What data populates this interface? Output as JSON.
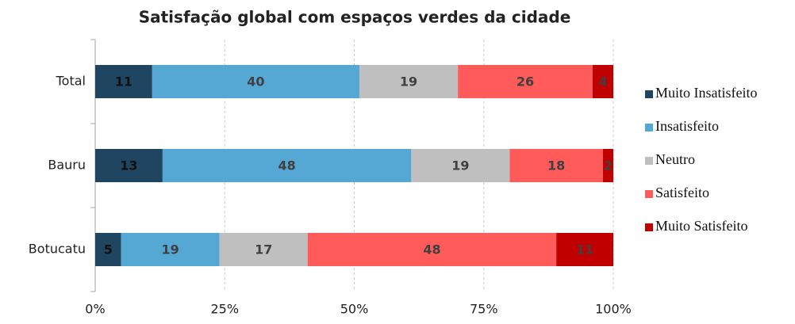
{
  "chart_data": {
    "type": "stacked_bar_horizontal",
    "title": "Satisfação global com espaços verdes da cidade",
    "categories": [
      "Total",
      "Bauru",
      "Botucatu"
    ],
    "series": [
      {
        "name": "Muito Insatisfeito",
        "color": "#1f4560",
        "values": [
          11,
          13,
          5
        ]
      },
      {
        "name": "Insatisfeito",
        "color": "#56a8d4",
        "values": [
          40,
          48,
          19
        ]
      },
      {
        "name": "Neutro",
        "color": "#bfbfbf",
        "values": [
          19,
          19,
          17
        ]
      },
      {
        "name": "Satisfeito",
        "color": "#ff5b5b",
        "values": [
          26,
          18,
          48
        ]
      },
      {
        "name": "Muito Satisfeito",
        "color": "#c00000",
        "values": [
          4,
          2,
          11
        ]
      }
    ],
    "xlim": [
      0,
      100
    ],
    "xticks": [
      {
        "value": 0,
        "label": "0%"
      },
      {
        "value": 25,
        "label": "25%"
      },
      {
        "value": 50,
        "label": "50%"
      },
      {
        "value": 75,
        "label": "75%"
      },
      {
        "value": 100,
        "label": "100%"
      }
    ],
    "grid": true,
    "legend": "right"
  }
}
